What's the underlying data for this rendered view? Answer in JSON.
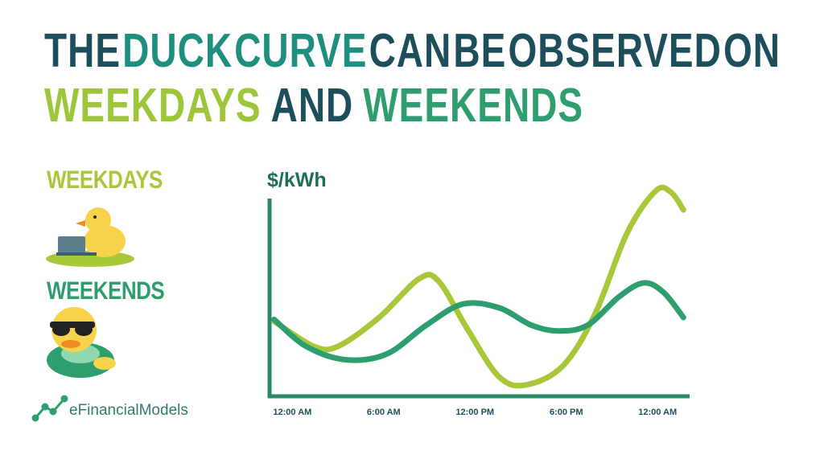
{
  "title_lines": [
    [
      {
        "text": "THE",
        "color": "#1d4e5b"
      },
      {
        "text": "DUCK",
        "color": "#1e8f7e"
      },
      {
        "text": "CURVE",
        "color": "#1e8f7e"
      },
      {
        "text": "CAN",
        "color": "#1d4e5b"
      },
      {
        "text": "BE",
        "color": "#1d4e5b"
      },
      {
        "text": "OBSERVED",
        "color": "#1d4e5b"
      },
      {
        "text": "ON",
        "color": "#1d4e5b"
      }
    ],
    [
      {
        "text": "WEEKDAYS",
        "color": "#9dc63a"
      },
      {
        "text": "AND",
        "color": "#1d4e5b"
      },
      {
        "text": "WEEKENDS",
        "color": "#2e9e6e"
      }
    ]
  ],
  "logo": "eFinancialModels",
  "chart_data": {
    "type": "line",
    "y_label": "$/kWh",
    "xlim": [
      -1.5,
      26
    ],
    "ylim": [
      0,
      11
    ],
    "xticks": [
      {
        "value": 0,
        "label": "12:00 AM"
      },
      {
        "value": 6,
        "label": "6:00 AM"
      },
      {
        "value": 12,
        "label": "12:00 PM"
      },
      {
        "value": 18,
        "label": "6:00 PM"
      },
      {
        "value": 24,
        "label": "12:00 AM"
      }
    ],
    "series": [
      {
        "name": "WEEKDAYS",
        "color": "#a8c83a",
        "x": [
          -1.2,
          1.4,
          3.0,
          5.7,
          8.3,
          9.6,
          11.5,
          13.6,
          15.4,
          17.8,
          19.9,
          22.0,
          23.9,
          24.9,
          25.7
        ],
        "values": [
          3.9,
          2.6,
          2.6,
          4.1,
          6.1,
          6.0,
          3.5,
          1.0,
          0.6,
          1.6,
          4.3,
          8.5,
          10.7,
          10.6,
          9.7
        ]
      },
      {
        "name": "WEEKENDS",
        "color": "#2e9e6e",
        "x": [
          -1.2,
          0.9,
          3.5,
          6.2,
          8.8,
          11.2,
          13.6,
          15.7,
          17.5,
          19.4,
          21.5,
          23.1,
          24.4,
          25.7
        ],
        "values": [
          4.0,
          2.6,
          1.9,
          2.2,
          3.7,
          4.8,
          4.6,
          3.7,
          3.4,
          3.7,
          5.2,
          5.9,
          5.4,
          4.1
        ]
      }
    ]
  }
}
